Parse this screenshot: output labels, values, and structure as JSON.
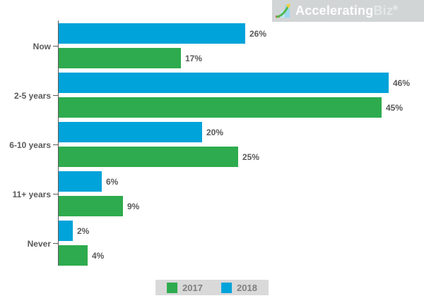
{
  "logo": {
    "brand_primary": "Accelerating",
    "brand_secondary": "Biz",
    "registered_mark": "®",
    "icon": "growth-chart-icon",
    "background": "#d2d5d6"
  },
  "chart_data": {
    "type": "bar",
    "orientation": "horizontal",
    "title": "",
    "categories": [
      "Now",
      "2-5 years",
      "6-10 years",
      "11+ years",
      "Never"
    ],
    "series": [
      {
        "name": "2017",
        "color": "#2eab4e",
        "values": [
          17,
          45,
          25,
          9,
          4
        ]
      },
      {
        "name": "2018",
        "color": "#00a3da",
        "values": [
          26,
          46,
          20,
          6,
          2
        ]
      }
    ],
    "bar_order_top_to_bottom": [
      "2018",
      "2017"
    ],
    "value_suffix": "%",
    "data_labels": true,
    "xlim": [
      0,
      50
    ],
    "grid": false,
    "legend_position": "bottom",
    "axis_color": "#595959",
    "label_color": "#595959"
  },
  "legend": {
    "background": "#d9d9d9",
    "items": [
      {
        "label": "2017",
        "color": "#2eab4e"
      },
      {
        "label": "2018",
        "color": "#00a3da"
      }
    ]
  }
}
